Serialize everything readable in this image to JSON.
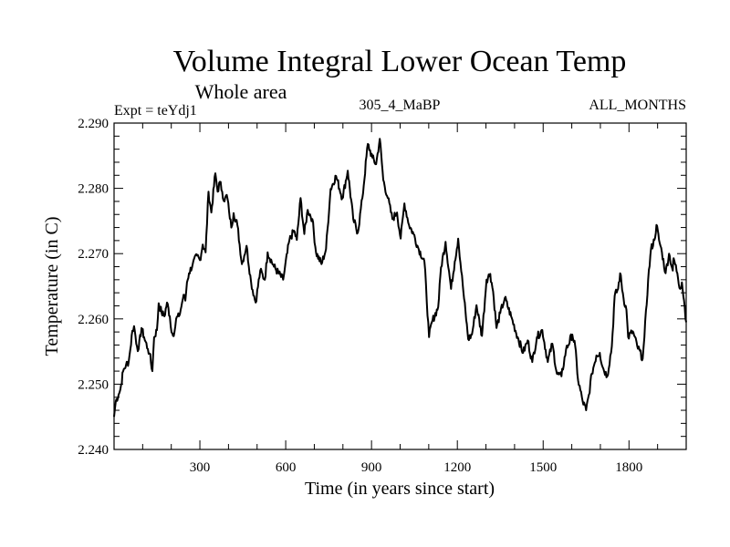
{
  "chart_data": {
    "type": "line",
    "title": "Volume Integral Lower Ocean Temp",
    "subtitle": "Whole area",
    "annotations": {
      "left": "Expt = teYdj1",
      "center": "305_4_MaBP",
      "right": "ALL_MONTHS"
    },
    "xlabel": "Time (in years since start)",
    "ylabel": "Temperature (in C)",
    "xlim": [
      0,
      2000
    ],
    "ylim": [
      2.24,
      2.29
    ],
    "x_major_ticks": [
      300,
      600,
      900,
      1200,
      1500,
      1800
    ],
    "x_tick_labels": [
      "300",
      "600",
      "900",
      "1200",
      "1500",
      "1800"
    ],
    "x_minor_step": 100,
    "y_major_ticks": [
      2.24,
      2.25,
      2.26,
      2.27,
      2.28,
      2.29
    ],
    "y_tick_labels": [
      "2.240",
      "2.250",
      "2.260",
      "2.270",
      "2.280",
      "2.290"
    ],
    "y_minor_step": 0.002,
    "grid": false,
    "legend": "none",
    "series": [
      {
        "name": "Volume Integral Lower Ocean Temp",
        "color": "#000000",
        "x": [
          0,
          6,
          16,
          22,
          32,
          42,
          51,
          57,
          64,
          70,
          80,
          86,
          96,
          105,
          118,
          124,
          134,
          140,
          150,
          156,
          166,
          176,
          185,
          195,
          201,
          211,
          217,
          227,
          233,
          243,
          249,
          255,
          262,
          275,
          290,
          300,
          310,
          320,
          330,
          340,
          354,
          362,
          370,
          378,
          386,
          394,
          402,
          410,
          418,
          431,
          447,
          463,
          479,
          495,
          511,
          527,
          537,
          559,
          591,
          613,
          629,
          639,
          652,
          665,
          677,
          693,
          706,
          725,
          741,
          757,
          776,
          798,
          817,
          836,
          852,
          868,
          887,
          903,
          916,
          929,
          941,
          957,
          973,
          989,
          1002,
          1015,
          1031,
          1047,
          1063,
          1085,
          1101,
          1111,
          1133,
          1143,
          1159,
          1178,
          1191,
          1203,
          1219,
          1238,
          1251,
          1267,
          1286,
          1302,
          1315,
          1325,
          1337,
          1350,
          1366,
          1388,
          1411,
          1430,
          1446,
          1462,
          1478,
          1497,
          1516,
          1532,
          1548,
          1564,
          1580,
          1602,
          1612,
          1622,
          1638,
          1650,
          1660,
          1670,
          1686,
          1698,
          1708,
          1724,
          1740,
          1750,
          1762,
          1769,
          1781,
          1791,
          1797,
          1813,
          1829,
          1848,
          1854,
          1867,
          1877,
          1889,
          1896,
          1905,
          1915,
          1928,
          1940,
          1953,
          1956,
          1969,
          1979,
          1985,
          1995,
          2000
        ],
        "y": [
          2.245,
          2.2474,
          2.2484,
          2.2492,
          2.252,
          2.253,
          2.2534,
          2.2554,
          2.2582,
          2.2589,
          2.2558,
          2.2554,
          2.2586,
          2.2572,
          2.2554,
          2.2547,
          2.252,
          2.2572,
          2.2583,
          2.2624,
          2.261,
          2.2604,
          2.2625,
          2.2604,
          2.2579,
          2.2579,
          2.26,
          2.2604,
          2.2614,
          2.2637,
          2.2628,
          2.2656,
          2.267,
          2.2684,
          2.2697,
          2.269,
          2.2714,
          2.2702,
          2.2795,
          2.2763,
          2.2823,
          2.2795,
          2.281,
          2.2795,
          2.278,
          2.279,
          2.2765,
          2.274,
          2.2762,
          2.2744,
          2.2684,
          2.2712,
          2.2656,
          2.2625,
          2.2674,
          2.266,
          2.2702,
          2.268,
          2.266,
          2.2721,
          2.2735,
          2.2721,
          2.2785,
          2.273,
          2.2767,
          2.2753,
          2.2702,
          2.2684,
          2.2707,
          2.2799,
          2.2819,
          2.2785,
          2.2827,
          2.2753,
          2.2732,
          2.2785,
          2.2868,
          2.2847,
          2.2837,
          2.2876,
          2.2813,
          2.2785,
          2.2753,
          2.2763,
          2.2723,
          2.2777,
          2.2744,
          2.273,
          2.2709,
          2.2688,
          2.2572,
          2.2595,
          2.2618,
          2.2679,
          2.2718,
          2.2646,
          2.2688,
          2.2723,
          2.2651,
          2.2569,
          2.2576,
          2.2621,
          2.2574,
          2.266,
          2.2669,
          2.2642,
          2.2586,
          2.2609,
          2.2632,
          2.2604,
          2.2572,
          2.2548,
          2.2567,
          2.2534,
          2.2572,
          2.2583,
          2.2534,
          2.2562,
          2.2516,
          2.2512,
          2.2553,
          2.2576,
          2.2558,
          2.2506,
          2.2474,
          2.246,
          2.2484,
          2.2516,
          2.2544,
          2.2548,
          2.2526,
          2.2512,
          2.2558,
          2.2635,
          2.2646,
          2.267,
          2.2632,
          2.2614,
          2.2572,
          2.2581,
          2.2558,
          2.2539,
          2.2572,
          2.266,
          2.2707,
          2.2721,
          2.2744,
          2.2721,
          2.2702,
          2.267,
          2.27,
          2.2674,
          2.2693,
          2.267,
          2.2646,
          2.2656,
          2.2618,
          2.2595
        ]
      }
    ]
  }
}
